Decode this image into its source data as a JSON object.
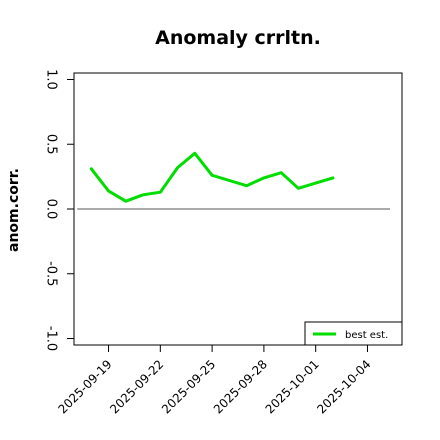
{
  "chart_data": {
    "type": "line",
    "title": "Anomaly crrltn.",
    "xlabel": "",
    "ylabel": "anom.corr.",
    "x": [
      "2025-09-18",
      "2025-09-19",
      "2025-09-20",
      "2025-09-21",
      "2025-09-22",
      "2025-09-23",
      "2025-09-24",
      "2025-09-25",
      "2025-09-26",
      "2025-09-27",
      "2025-09-28",
      "2025-09-29",
      "2025-09-30",
      "2025-10-01",
      "2025-10-02"
    ],
    "x_ticks": [
      "2025-09-19",
      "2025-09-22",
      "2025-09-25",
      "2025-09-28",
      "2025-10-01",
      "2025-10-04"
    ],
    "highlight_tick": "2025-09-25",
    "y_ticks": [
      "-1.0",
      "-0.5",
      "0.0",
      "0.5",
      "1.0"
    ],
    "ylim": [
      -1.05,
      1.05
    ],
    "xlim": [
      "2025-09-17",
      "2025-10-06"
    ],
    "reference_line": 0,
    "series": [
      {
        "name": "best est.",
        "color": "#00dd00",
        "values": [
          0.31,
          0.14,
          0.06,
          0.11,
          0.13,
          0.32,
          0.43,
          0.26,
          0.22,
          0.18,
          0.24,
          0.28,
          0.16,
          0.2,
          0.24
        ]
      }
    ],
    "legend": {
      "position": "bottom-right"
    },
    "grid": false,
    "colors": {
      "highlight_tick": "#228b22",
      "reference_line": "#555555",
      "axis": "#000000"
    }
  }
}
